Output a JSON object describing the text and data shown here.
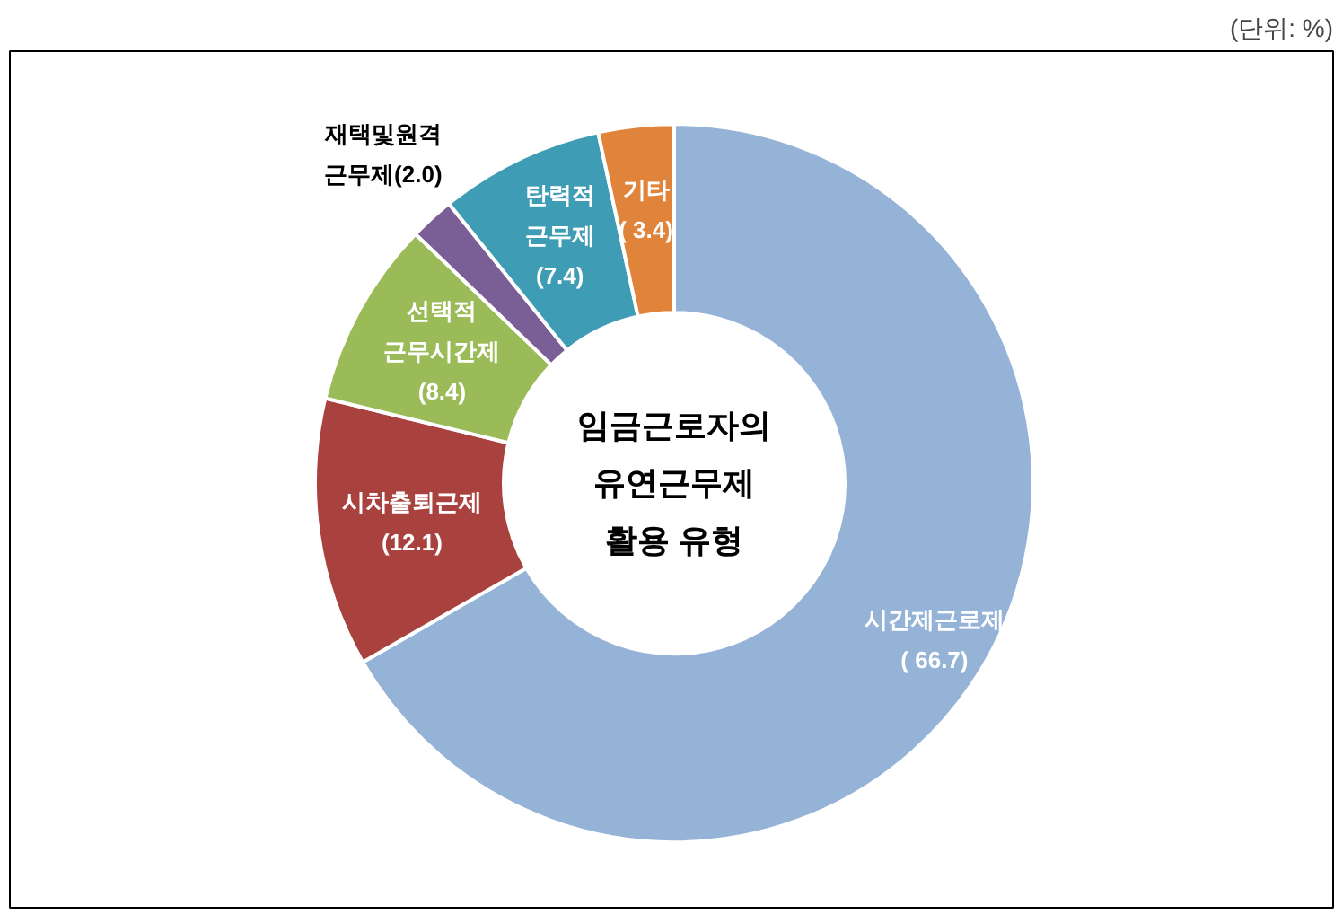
{
  "chart_data": {
    "type": "donut",
    "title": "임금근로자의\n유연근무제\n활용 유형",
    "categories": [
      "시간제근로제",
      "시차출퇴근제",
      "선택적\n근무시간제",
      "재택및원격\n근무제",
      "탄력적\n근무제",
      "기타"
    ],
    "values": [
      66.7,
      12.1,
      8.4,
      2.0,
      7.4,
      3.4
    ],
    "value_labels": [
      "( 66.7)",
      "(12.1)",
      "(8.4)",
      "(2.0)",
      "(7.4)",
      "( 3.4)"
    ],
    "colors": [
      "#95b3d7",
      "#a9413e",
      "#9bbb59",
      "#7a5f96",
      "#3f9cb5",
      "#e0843c"
    ],
    "annotations": [
      "(단위: %)"
    ]
  }
}
